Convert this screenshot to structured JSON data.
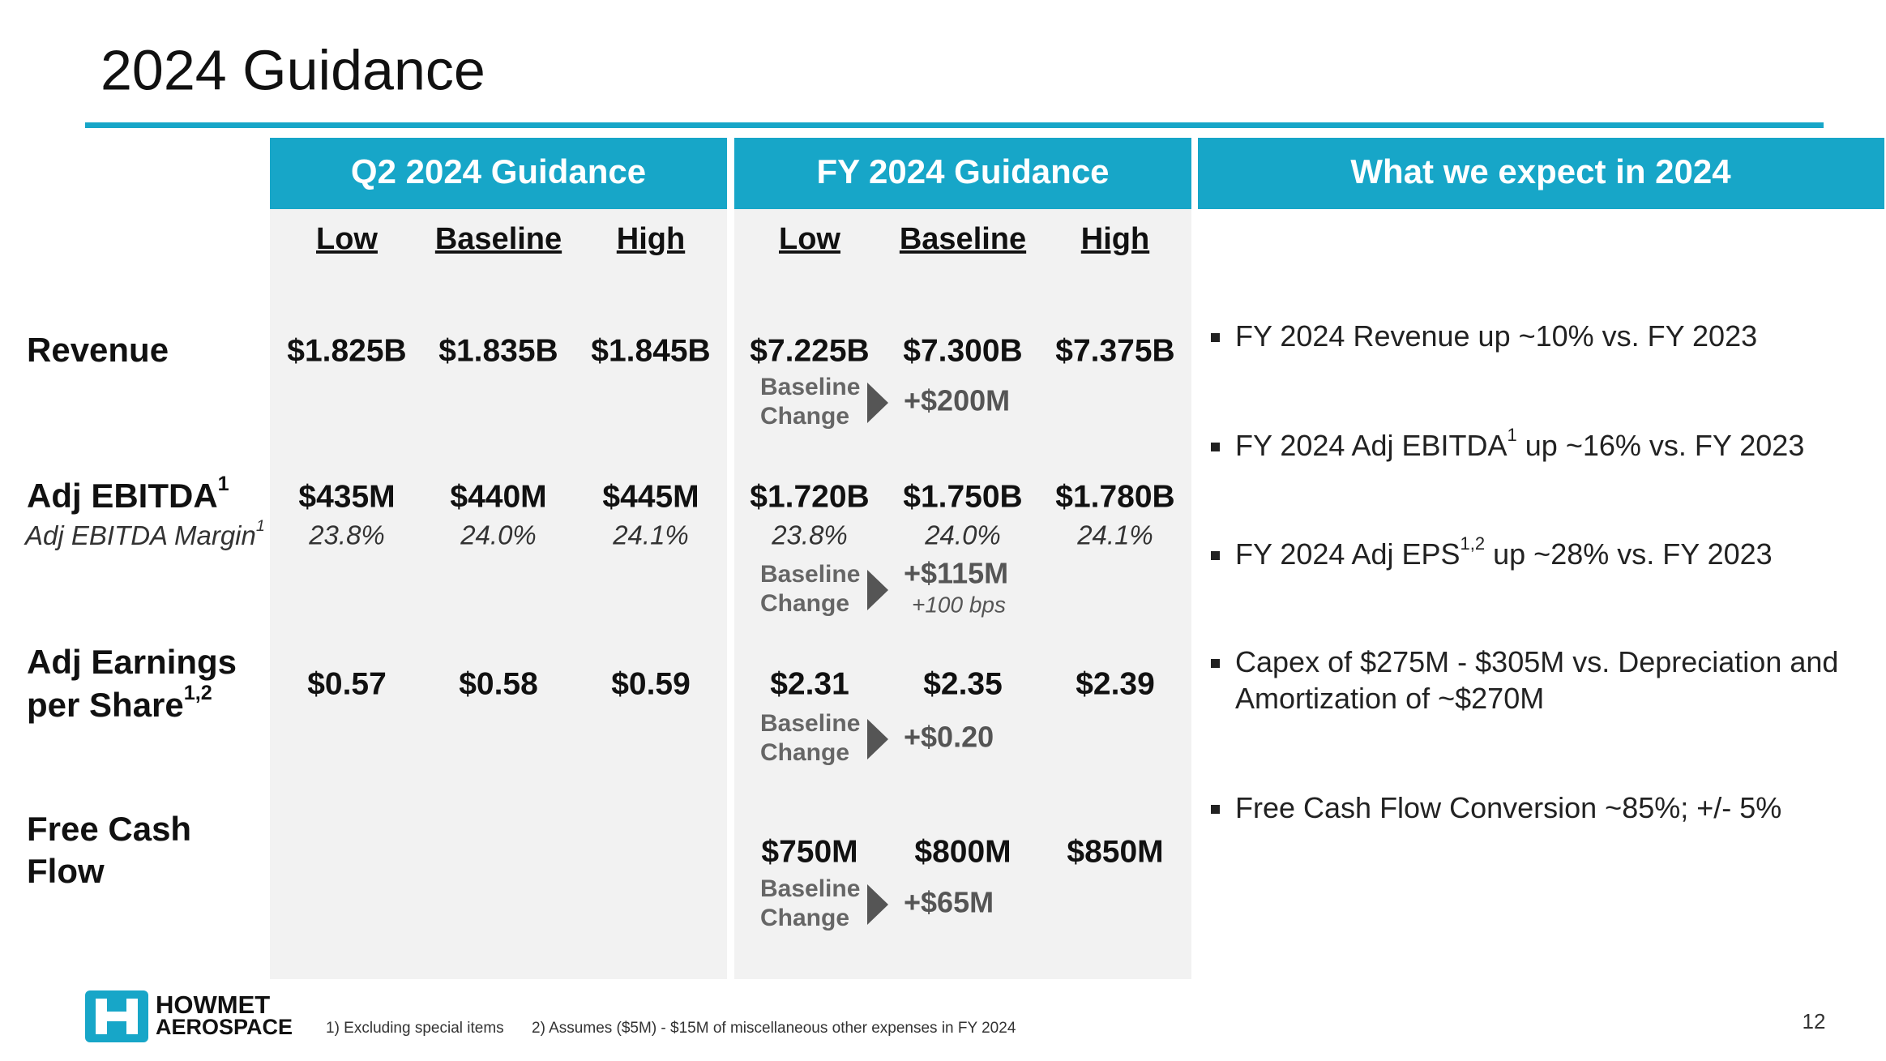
{
  "header": {
    "title": "2024 Guidance"
  },
  "columns": {
    "q2": "Q2 2024 Guidance",
    "fy": "FY 2024 Guidance",
    "expect": "What we expect in 2024"
  },
  "subheaders": [
    "Low",
    "Baseline",
    "High",
    "Low",
    "Baseline",
    "High"
  ],
  "change_label": [
    "Baseline",
    "Change"
  ],
  "rows": [
    {
      "label": [
        "Revenue"
      ],
      "q2": [
        "$1.825B",
        "$1.835B",
        "$1.845B"
      ],
      "fy": [
        "$7.225B",
        "$7.300B",
        "$7.375B"
      ],
      "change": "+$200M"
    },
    {
      "label": [
        "Adj EBITDA"
      ],
      "label_sup": "1",
      "sublabel": "Adj EBITDA Margin",
      "sublabel_sup": "1",
      "q2": [
        "$435M",
        "$440M",
        "$445M"
      ],
      "q2_margin": [
        "23.8%",
        "24.0%",
        "24.1%"
      ],
      "fy": [
        "$1.720B",
        "$1.750B",
        "$1.780B"
      ],
      "fy_margin": [
        "23.8%",
        "24.0%",
        "24.1%"
      ],
      "change": "+$115M",
      "change_note": "+100 bps"
    },
    {
      "label": [
        "Adj Earnings",
        "per Share"
      ],
      "label_sup": "1,2",
      "q2": [
        "$0.57",
        "$0.58",
        "$0.59"
      ],
      "fy": [
        "$2.31",
        "$2.35",
        "$2.39"
      ],
      "change": "+$0.20"
    },
    {
      "label": [
        "Free Cash",
        "Flow"
      ],
      "fy": [
        "$750M",
        "$800M",
        "$850M"
      ],
      "change": "+$65M"
    }
  ],
  "bullets": [
    {
      "lines": [
        [
          "FY 2024 Revenue up ~10% vs. FY 2023"
        ]
      ]
    },
    {
      "lines": [
        [
          "FY 2024 Adj EBITDA",
          {
            "sup": "1"
          },
          " up ~16% vs. FY 2023"
        ]
      ]
    },
    {
      "lines": [
        [
          "FY 2024 Adj EPS",
          {
            "sup": "1,2"
          },
          " up ~28% vs. FY 2023"
        ]
      ]
    },
    {
      "lines": [
        [
          "Capex of $275M - $305M vs. Depreciation and"
        ],
        [
          "Amortization of ~$270M"
        ]
      ]
    },
    {
      "lines": [
        [
          "Free Cash Flow Conversion ~85%; +/- 5%"
        ]
      ]
    }
  ],
  "logo": [
    "HOWMET",
    "AEROSPACE"
  ],
  "footnotes": [
    "1) Excluding special items",
    "2) Assumes ($5M) - $15M of miscellaneous other expenses in FY 2024"
  ],
  "page_number": "12"
}
